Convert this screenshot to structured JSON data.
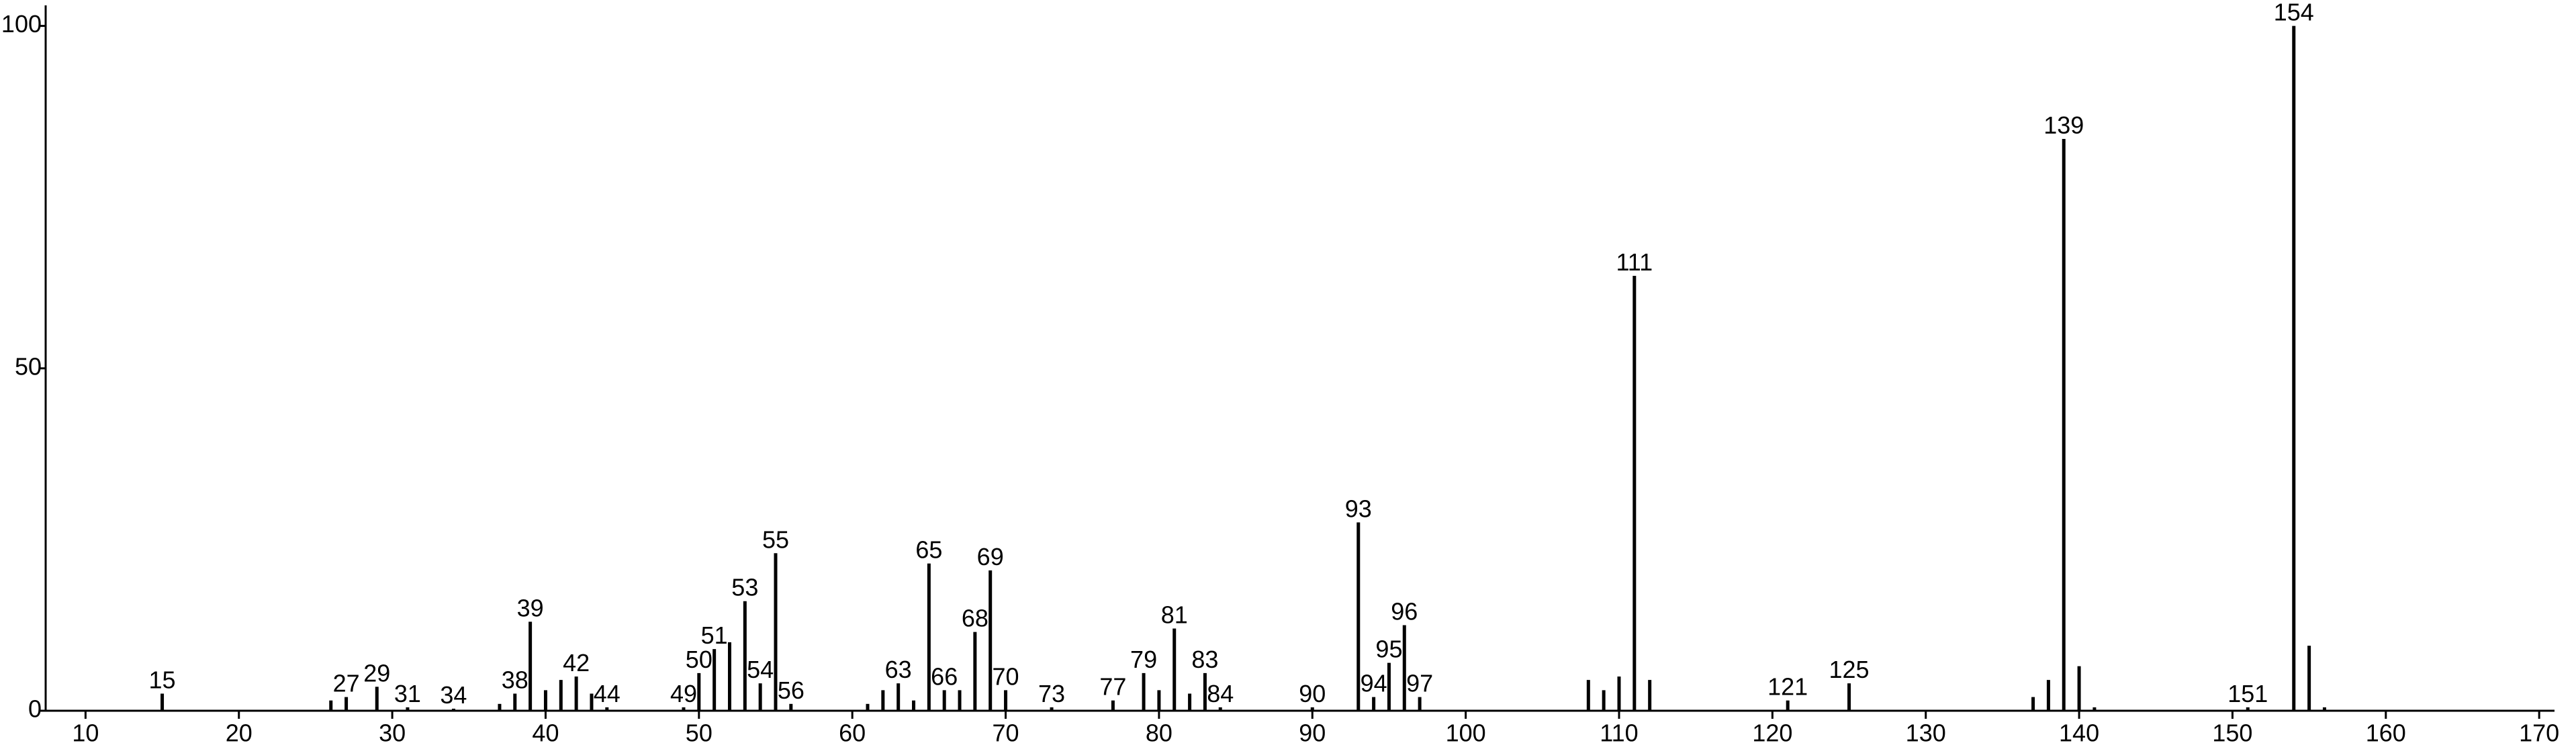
{
  "chart_data": {
    "type": "stick",
    "series": [
      {
        "color": "#000000",
        "labeled": true,
        "x": [
          15,
          27,
          29,
          31,
          34,
          38,
          39,
          42,
          44,
          49,
          50,
          51,
          53,
          54,
          55,
          56,
          63,
          65,
          66,
          68,
          69,
          70,
          73,
          77,
          79,
          81,
          83,
          84,
          90,
          93,
          94,
          95,
          96,
          97,
          111,
          121,
          125,
          139,
          151,
          154
        ],
        "values": [
          2.5,
          2,
          3.5,
          0.5,
          0.3,
          2.5,
          13,
          5,
          0.5,
          0.5,
          5.5,
          9,
          16,
          4,
          23,
          1,
          4,
          21.5,
          3,
          11.5,
          20.5,
          3,
          0.5,
          1.5,
          5.5,
          12,
          5.5,
          0.5,
          0.5,
          27.5,
          2,
          7,
          12.5,
          2,
          63.5,
          1.5,
          4,
          83.5,
          0.5,
          100
        ]
      },
      {
        "color": "#000000",
        "labeled": false,
        "x": [
          26,
          37,
          40,
          41,
          43,
          52,
          61,
          62,
          64,
          67,
          80,
          82,
          108,
          109,
          110,
          112,
          137,
          138,
          140,
          141,
          155,
          156
        ],
        "values": [
          1.5,
          1,
          3,
          4.5,
          2.5,
          10,
          1,
          3,
          1.5,
          3,
          3,
          2.5,
          4.5,
          3,
          5,
          4.5,
          2,
          4.5,
          6.5,
          0.5,
          9.5,
          0.5
        ]
      }
    ],
    "xlim": [
      7.4,
      171
    ],
    "ylim": [
      0,
      103
    ],
    "xticks": [
      10,
      20,
      30,
      40,
      50,
      60,
      70,
      80,
      90,
      100,
      110,
      120,
      130,
      140,
      150,
      160,
      170
    ],
    "yticks": [
      0,
      50,
      100
    ]
  }
}
